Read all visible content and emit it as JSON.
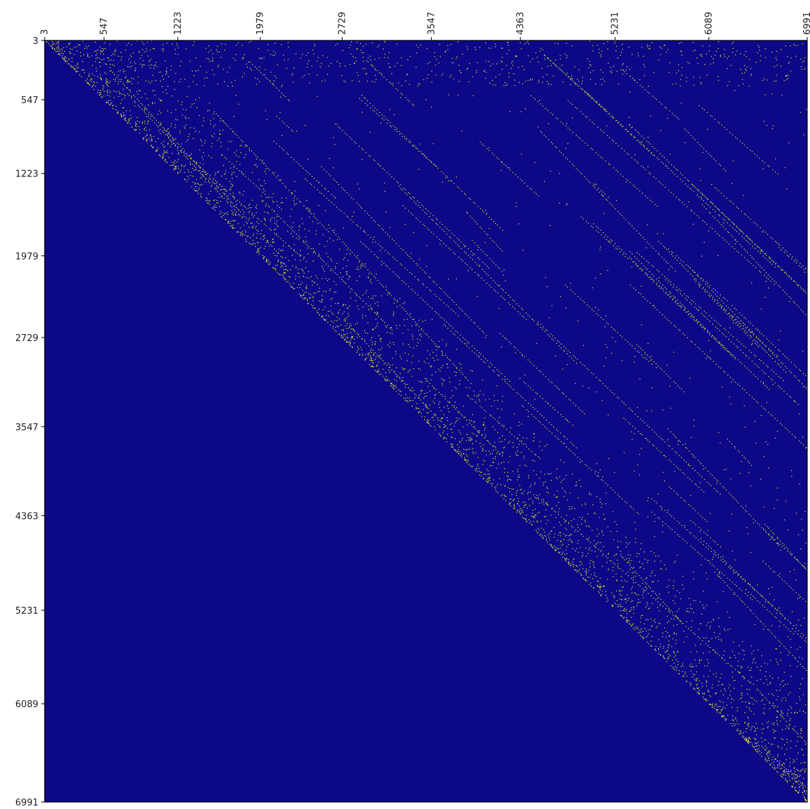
{
  "chart_data": {
    "type": "heatmap",
    "title": "",
    "xlabel": "",
    "ylabel": "",
    "x_ticks": [
      "3",
      "547",
      "1223",
      "1979",
      "2729",
      "3547",
      "4363",
      "5231",
      "6089",
      "6991"
    ],
    "y_ticks": [
      "3",
      "547",
      "1223",
      "1979",
      "2729",
      "3547",
      "4363",
      "5231",
      "6089",
      "6991"
    ],
    "xlim": [
      3,
      6991
    ],
    "ylim": [
      3,
      6991
    ],
    "pattern": "upper-triangular sparse matrix",
    "background_color": "#0d0887",
    "point_color": "#f0f921",
    "axis_color": "#000000",
    "grid": false
  }
}
